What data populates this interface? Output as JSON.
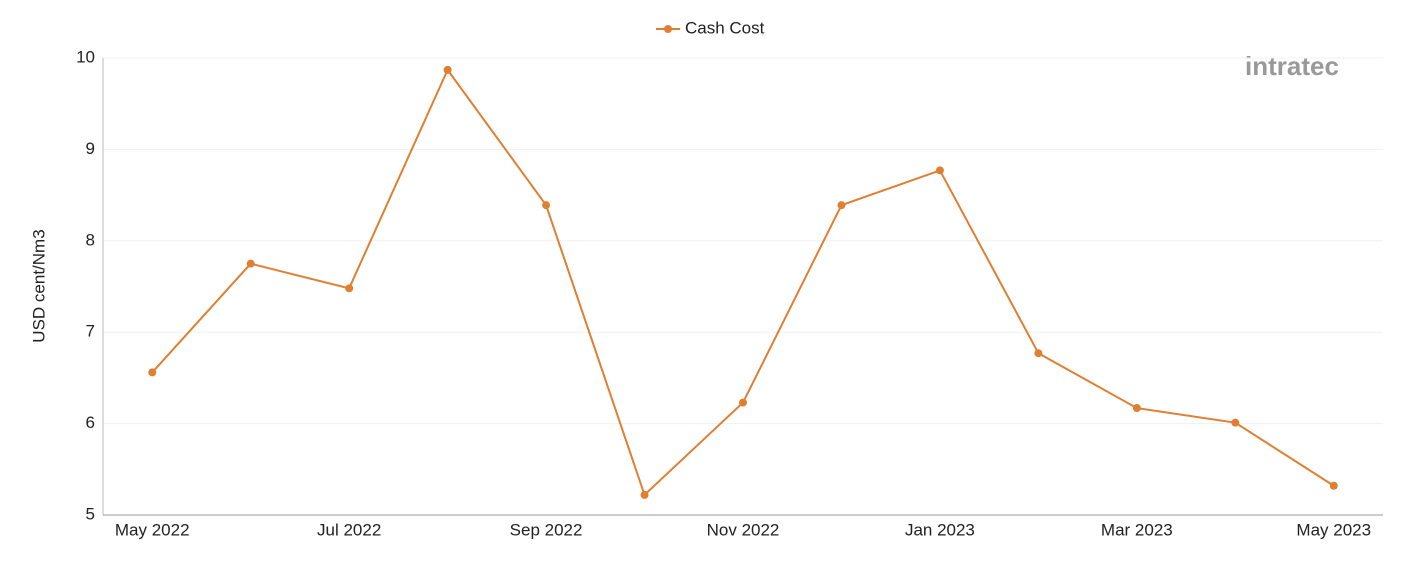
{
  "chart_data": {
    "type": "line",
    "y_label": "USD cent/Nm3",
    "logo": "intratec",
    "categories": [
      "May 2022",
      null,
      "Jul 2022",
      null,
      "Sep 2022",
      null,
      "Nov 2022",
      null,
      "Jan 2023",
      null,
      "Mar 2023",
      null,
      "May 2023"
    ],
    "series": [
      {
        "name": "Cash Cost",
        "color": "#e07f32",
        "values": [
          6.56,
          7.75,
          7.48,
          9.87,
          8.39,
          5.22,
          6.23,
          8.39,
          8.77,
          6.77,
          6.17,
          6.01,
          5.32
        ]
      }
    ],
    "ylim": [
      5,
      10
    ],
    "yticks": [
      5,
      6,
      7,
      8,
      9,
      10
    ],
    "grid": true,
    "legend": "top"
  }
}
